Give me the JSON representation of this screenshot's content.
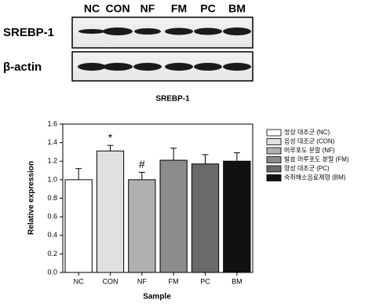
{
  "blot": {
    "lanes": [
      "NC",
      "CON",
      "NF",
      "FM",
      "PC",
      "BM"
    ],
    "rows": [
      "SREBP-1",
      "β-actin"
    ]
  },
  "chart_data": {
    "type": "bar",
    "title": "SREBP-1",
    "x_label": "Sample",
    "y_label": "Relative expression",
    "categories": [
      "NC",
      "CON",
      "NF",
      "FM",
      "PC",
      "BM"
    ],
    "values": [
      1.0,
      1.31,
      1.0,
      1.21,
      1.17,
      1.2
    ],
    "errors": [
      0.12,
      0.06,
      0.08,
      0.13,
      0.1,
      0.09
    ],
    "annotations": [
      "",
      "*",
      "#",
      "",
      "",
      ""
    ],
    "legend": [
      "정상 대조군 (NC)",
      "음성 대조군 (CON)",
      "머루포도 분말 (NF)",
      "발효 머루포도 분말 (FM)",
      "양성 대조군 (PC)",
      "숙취해소음료제형 (BM)"
    ],
    "colors": [
      "#ffffff",
      "#e0e0e0",
      "#b0b0b0",
      "#8c8c8c",
      "#6a6a6a",
      "#111111"
    ],
    "ylim": [
      0,
      1.6
    ],
    "yticks": [
      {
        "value": 0,
        "label": "0.0"
      },
      {
        "value": 0.2,
        "label": "0.2"
      },
      {
        "value": 0.4,
        "label": "0.4"
      },
      {
        "value": 0.6,
        "label": "0.6"
      },
      {
        "value": 0.8,
        "label": "0.8"
      },
      {
        "value": 1,
        "label": "1.0"
      },
      {
        "value": 1.2,
        "label": "1.2"
      },
      {
        "value": 1.4,
        "label": "1.4"
      },
      {
        "value": 1.6,
        "label": "1.6"
      }
    ]
  }
}
